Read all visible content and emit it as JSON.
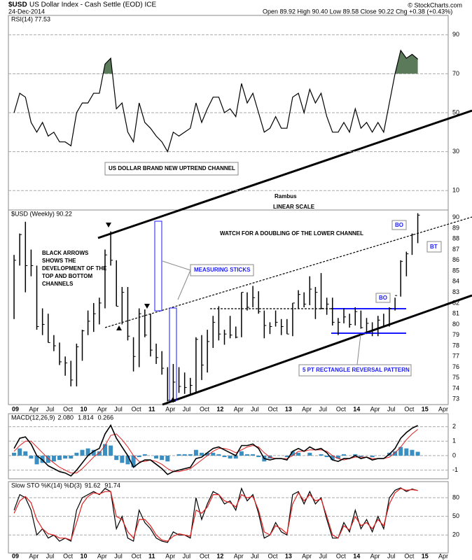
{
  "header": {
    "symbol": "$USD",
    "name": "US Dollar Index - Cash Settle (EOD) ICE",
    "date": "24-Dec-2014",
    "quote": "Open 89.92  High 90.40  Low 89.58  Close 90.22  Chg +0.38 (+0.43%)",
    "credit": "© StockCharts.com"
  },
  "xtick_labels": [
    "09",
    "Apr",
    "Jul",
    "Oct",
    "10",
    "Apr",
    "Jul",
    "Oct",
    "11",
    "Apr",
    "Jul",
    "Oct",
    "12",
    "Apr",
    "Jul",
    "Oct",
    "13",
    "Apr",
    "Jul",
    "Oct",
    "14",
    "Apr",
    "Jul",
    "Oct",
    "15",
    "Apr"
  ],
  "chart_data": [
    {
      "type": "line",
      "title": "RSI(14) 77.53",
      "color": "#000000",
      "fill_color": "#5a7a5a",
      "annotations": [
        "US DOLLAR BRAND NEW UPTREND CHANNEL",
        "Rambus",
        "LINEAR SCALE"
      ],
      "ylim": [
        0,
        100
      ],
      "yticks": [
        10,
        30,
        50,
        70,
        90
      ],
      "grid": true,
      "series": [
        {
          "color": "#000000",
          "values": [
            50,
            60,
            58,
            45,
            40,
            45,
            38,
            40,
            35,
            35,
            33,
            50,
            55,
            55,
            60,
            60,
            75,
            78,
            52,
            55,
            40,
            35,
            55,
            45,
            42,
            38,
            35,
            30,
            40,
            38,
            40,
            42,
            55,
            45,
            52,
            58,
            58,
            50,
            52,
            48,
            65,
            55,
            60,
            50,
            40,
            42,
            48,
            42,
            42,
            58,
            60,
            50,
            62,
            55,
            60,
            48,
            40,
            40,
            45,
            40,
            52,
            42,
            45,
            40,
            45,
            40,
            55,
            70,
            82,
            78,
            80,
            77.53
          ]
        }
      ]
    },
    {
      "type": "ohlc",
      "title": "$USD (Weekly) 90.22",
      "color": "#000000",
      "annotations": [
        "WATCH FOR A DOUBLING OF THE LOWER CHANNEL",
        "MEASURING STICKS",
        "BO",
        "BO",
        "BT",
        "5 PT RECTANGLE REVERSAL PATTERN"
      ],
      "note_lines": [
        "BLACK ARROWS",
        "SHOWS THE",
        "DEVELOPMENT OF THE",
        "TOP AND BOTTOM",
        "CHANNELS"
      ],
      "ylim": [
        72.5,
        90.7
      ],
      "yticks": [
        73,
        74,
        75,
        76,
        77,
        78,
        79,
        80,
        81,
        82,
        83,
        84,
        85,
        86,
        87,
        88,
        89,
        90
      ],
      "high": [
        86.5,
        88.5,
        89.6,
        87.0,
        85.5,
        81.5,
        81.0,
        79.0,
        78.3,
        77.0,
        76.6,
        78.2,
        79.5,
        81.3,
        82.0,
        82.5,
        87.0,
        88.7,
        86.0,
        83.5,
        83.5,
        78.8,
        81.5,
        81.4,
        81.0,
        78.2,
        77.5,
        76.0,
        76.3,
        76.0,
        75.5,
        75.0,
        78.8,
        79.0,
        79.5,
        80.8,
        81.7,
        79.5,
        80.8,
        79.8,
        83.0,
        83.0,
        83.6,
        83.1,
        81.3,
        80.2,
        81.3,
        80.5,
        80.5,
        82.0,
        83.2,
        83.0,
        84.5,
        83.5,
        84.8,
        82.5,
        82.5,
        80.6,
        81.5,
        81.0,
        81.6,
        81.3,
        80.6,
        80.2,
        80.8,
        81.0,
        81.6,
        82.5,
        86.0,
        86.8,
        88.5,
        90.4
      ],
      "low": [
        80.5,
        85.5,
        83.0,
        84.5,
        79.5,
        79.0,
        78.3,
        77.5,
        76.2,
        75.2,
        74.2,
        74.2,
        76.6,
        79.0,
        79.3,
        80.0,
        81.5,
        85.5,
        81.7,
        80.0,
        78.5,
        75.6,
        76.0,
        78.8,
        77.0,
        76.3,
        75.3,
        72.8,
        72.7,
        73.6,
        73.5,
        73.4,
        73.6,
        74.8,
        75.5,
        77.8,
        78.5,
        78.1,
        78.7,
        78.7,
        78.8,
        81.3,
        81.6,
        81.0,
        78.7,
        79.1,
        79.8,
        79.0,
        79.1,
        78.9,
        81.5,
        81.6,
        81.8,
        80.5,
        81.4,
        80.9,
        79.9,
        79.0,
        80.1,
        79.7,
        79.9,
        79.6,
        79.1,
        78.9,
        78.9,
        79.7,
        79.8,
        81.3,
        82.6,
        84.5,
        86.5,
        87.6
      ],
      "close": [
        86.0,
        88.4,
        85.5,
        85.5,
        79.8,
        80.0,
        78.3,
        78.0,
        76.5,
        76.4,
        74.8,
        77.9,
        79.4,
        80.3,
        81.0,
        82.0,
        86.5,
        86.0,
        81.7,
        83.0,
        78.9,
        77.0,
        81.0,
        79.0,
        77.6,
        76.9,
        75.9,
        72.9,
        74.6,
        74.2,
        74.1,
        74.3,
        78.6,
        76.2,
        78.4,
        80.2,
        79.1,
        79.1,
        79.0,
        78.8,
        83.0,
        81.6,
        82.5,
        81.2,
        79.9,
        79.8,
        80.2,
        79.8,
        79.1,
        82.0,
        82.8,
        81.9,
        83.3,
        83.0,
        81.5,
        81.9,
        80.2,
        80.2,
        80.7,
        80.0,
        81.2,
        79.7,
        80.1,
        79.5,
        80.4,
        79.8,
        81.5,
        82.7,
        85.9,
        86.6,
        88.4,
        90.22
      ]
    },
    {
      "type": "macd",
      "title": "MACD(12,26,9)",
      "readout": [
        "2.080",
        "1.814",
        "0.266"
      ],
      "ylim": [
        -1.6,
        2.9
      ],
      "yticks": [
        -1,
        0,
        1,
        2
      ],
      "grid": true,
      "series": [
        {
          "color": "#000000",
          "values": [
            0.5,
            1.2,
            1.3,
            0.8,
            0,
            -0.3,
            -0.7,
            -0.9,
            -1.1,
            -1.2,
            -1.4,
            -1.0,
            -0.5,
            0,
            0.3,
            0.5,
            1.5,
            2.1,
            1.2,
            0.6,
            0,
            -0.8,
            -0.5,
            -0.3,
            -0.3,
            -0.6,
            -0.9,
            -1.3,
            -1.1,
            -1.0,
            -0.9,
            -0.8,
            -0.2,
            -0.1,
            0.2,
            0.5,
            0.6,
            0.4,
            0.2,
            0,
            0.7,
            0.7,
            0.8,
            0.5,
            -0.2,
            -0.3,
            -0.2,
            -0.2,
            -0.3,
            0.3,
            0.5,
            0.3,
            0.6,
            0.4,
            0.5,
            0.2,
            -0.3,
            -0.4,
            -0.2,
            -0.2,
            0,
            -0.2,
            -0.1,
            -0.3,
            -0.2,
            -0.2,
            0.1,
            0.5,
            1.2,
            1.6,
            1.9,
            2.08
          ]
        },
        {
          "color": "#e02020",
          "values": [
            0.3,
            0.7,
            1.0,
            1.0,
            0.6,
            0.2,
            -0.2,
            -0.5,
            -0.8,
            -1.0,
            -1.2,
            -1.2,
            -0.9,
            -0.5,
            -0.1,
            0.2,
            0.7,
            1.4,
            1.5,
            1.1,
            0.6,
            0,
            -0.4,
            -0.4,
            -0.3,
            -0.4,
            -0.6,
            -0.9,
            -1.1,
            -1.1,
            -1.0,
            -0.9,
            -0.6,
            -0.3,
            0,
            0.3,
            0.5,
            0.5,
            0.4,
            0.2,
            0.4,
            0.6,
            0.7,
            0.6,
            0.2,
            -0.1,
            -0.2,
            -0.2,
            -0.2,
            0,
            0.3,
            0.3,
            0.4,
            0.4,
            0.4,
            0.3,
            0,
            -0.2,
            -0.3,
            -0.2,
            -0.1,
            -0.1,
            -0.1,
            -0.2,
            -0.2,
            -0.2,
            -0.1,
            0.2,
            0.6,
            1.1,
            1.5,
            1.814
          ]
        },
        {
          "color": "#3a8fc0",
          "values": [
            0.2,
            0.5,
            0.3,
            -0.2,
            -0.6,
            -0.5,
            -0.5,
            -0.4,
            -0.3,
            -0.2,
            -0.2,
            0.2,
            0.4,
            0.5,
            0.4,
            0.3,
            0.8,
            0.7,
            -0.3,
            -0.5,
            -0.6,
            -0.8,
            -0.1,
            0.1,
            0,
            -0.2,
            -0.3,
            -0.4,
            0,
            0.1,
            0.1,
            0.1,
            0.4,
            0.2,
            0.2,
            0.2,
            0.1,
            -0.1,
            -0.2,
            -0.2,
            0.3,
            0.1,
            0.1,
            -0.1,
            -0.4,
            -0.2,
            0,
            0,
            -0.1,
            0.3,
            0.2,
            0,
            0.2,
            0,
            0.1,
            -0.1,
            -0.3,
            -0.2,
            0.1,
            0,
            0.1,
            -0.1,
            0,
            -0.1,
            0,
            0,
            0.2,
            0.3,
            0.6,
            0.5,
            0.4,
            0.266
          ]
        }
      ]
    },
    {
      "type": "line",
      "title": "Slow STO %K(14) %D(3)",
      "readout": [
        "91.62",
        "91.74"
      ],
      "ylim": [
        -9,
        106
      ],
      "yticks": [
        20,
        50,
        80
      ],
      "grid": true,
      "series": [
        {
          "color": "#000000",
          "values": [
            60,
            85,
            80,
            60,
            20,
            30,
            15,
            20,
            10,
            15,
            10,
            60,
            80,
            85,
            90,
            85,
            95,
            90,
            30,
            50,
            15,
            10,
            60,
            40,
            30,
            15,
            10,
            8,
            25,
            20,
            20,
            15,
            80,
            45,
            70,
            90,
            85,
            70,
            75,
            60,
            95,
            75,
            85,
            55,
            15,
            20,
            40,
            25,
            20,
            85,
            90,
            70,
            90,
            70,
            80,
            45,
            15,
            15,
            40,
            25,
            60,
            30,
            45,
            25,
            50,
            30,
            80,
            92,
            96,
            90,
            94,
            91.62
          ]
        },
        {
          "color": "#e02020",
          "values": [
            55,
            75,
            82,
            72,
            45,
            30,
            22,
            20,
            15,
            15,
            12,
            40,
            70,
            82,
            88,
            86,
            90,
            90,
            50,
            45,
            25,
            15,
            45,
            45,
            35,
            20,
            12,
            10,
            18,
            22,
            20,
            18,
            60,
            55,
            65,
            85,
            85,
            75,
            72,
            65,
            85,
            80,
            82,
            60,
            25,
            20,
            35,
            30,
            22,
            70,
            88,
            75,
            85,
            75,
            78,
            50,
            20,
            15,
            35,
            28,
            50,
            35,
            40,
            30,
            45,
            35,
            70,
            88,
            95,
            92,
            93,
            91.74
          ]
        }
      ]
    }
  ]
}
